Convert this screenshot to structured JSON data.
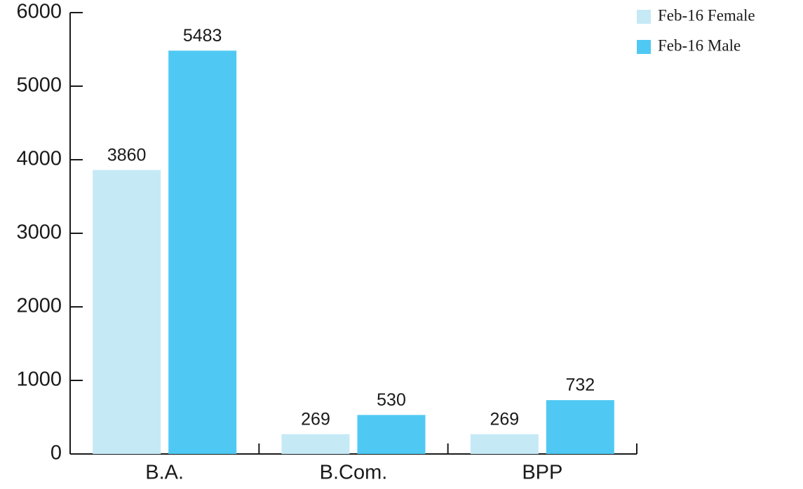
{
  "chart_data": {
    "type": "bar",
    "categories": [
      "B.A.",
      "B.Com.",
      "BPP"
    ],
    "series": [
      {
        "name": "Feb-16 Female",
        "color": "#c6e9f6",
        "values": [
          3860,
          269,
          269
        ]
      },
      {
        "name": "Feb-16 Male",
        "color": "#4fc9f3",
        "values": [
          5483,
          530,
          732
        ]
      }
    ],
    "ylim": [
      0,
      6000
    ],
    "yticks": [
      0,
      1000,
      2000,
      3000,
      4000,
      5000,
      6000
    ],
    "legend": "top-right"
  }
}
